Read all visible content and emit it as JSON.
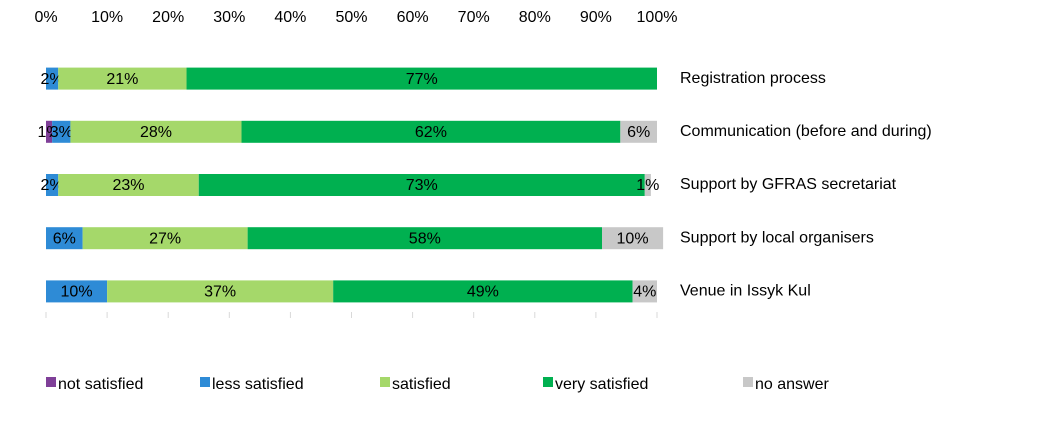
{
  "chart_data": {
    "type": "stacked_barh",
    "categories": [
      "Registration process",
      "Communication (before and during)",
      "Support by GFRAS secretariat",
      "Support by local organisers",
      "Venue in Issyk Kul"
    ],
    "series": [
      {
        "name": "not satisfied",
        "color": "#7f3f98",
        "values": [
          null,
          1,
          null,
          null,
          null
        ],
        "value_labels": [
          null,
          "1%",
          null,
          null,
          null
        ]
      },
      {
        "name": "less satisfied",
        "color": "#2e8bd6",
        "values": [
          2,
          3,
          2,
          6,
          10
        ],
        "value_labels": [
          "2%",
          "3%",
          "2%",
          "6%",
          "10%"
        ]
      },
      {
        "name": "satisfied",
        "color": "#a5d86a",
        "values": [
          21,
          28,
          23,
          27,
          37
        ],
        "value_labels": [
          "21%",
          "28%",
          "23%",
          "27%",
          "37%"
        ]
      },
      {
        "name": "very satisfied",
        "color": "#00b050",
        "values": [
          77,
          62,
          73,
          58,
          49
        ],
        "value_labels": [
          "77%",
          "62%",
          "73%",
          "58%",
          "49%"
        ]
      },
      {
        "name": "no answer",
        "color": "#c8c8c8",
        "values": [
          null,
          6,
          1,
          10,
          4
        ],
        "value_labels": [
          null,
          "6%",
          "1%",
          "10%",
          "4%"
        ]
      }
    ],
    "xlim": [
      0,
      100
    ],
    "xticks": [
      {
        "value": 0,
        "label": "0%"
      },
      {
        "value": 10,
        "label": "10%"
      },
      {
        "value": 20,
        "label": "20%"
      },
      {
        "value": 30,
        "label": "30%"
      },
      {
        "value": 40,
        "label": "40%"
      },
      {
        "value": 50,
        "label": "50%"
      },
      {
        "value": 60,
        "label": "60%"
      },
      {
        "value": 70,
        "label": "70%"
      },
      {
        "value": 80,
        "label": "80%"
      },
      {
        "value": 90,
        "label": "90%"
      },
      {
        "value": 100,
        "label": "100%"
      }
    ],
    "legend": "bottom"
  }
}
